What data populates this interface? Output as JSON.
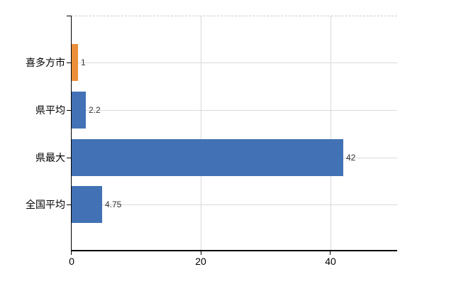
{
  "chart_data": {
    "type": "bar",
    "orientation": "horizontal",
    "title": "",
    "categories": [
      "喜多方市",
      "県平均",
      "県最大",
      "全国平均"
    ],
    "values": [
      1,
      2.2,
      42,
      4.75
    ],
    "value_labels": [
      "1",
      "2.2",
      "42",
      "4.75"
    ],
    "bar_colors": [
      "#EC8F3A",
      "#4272B5",
      "#4272B5",
      "#4272B5"
    ],
    "highlight_color": "#EC8F3A",
    "series_color": "#4272B5",
    "x_ticks": [
      0,
      20,
      40
    ],
    "x_tick_labels": [
      "0",
      "20",
      "40"
    ],
    "xlim": [
      0,
      50.3
    ],
    "grid": true,
    "gridline_color": "#d9d9d9",
    "top_border_style": "dashed",
    "axis_color": "#000000",
    "value_label_color": "#333333",
    "legend": null,
    "xlabel": "",
    "ylabel": ""
  }
}
